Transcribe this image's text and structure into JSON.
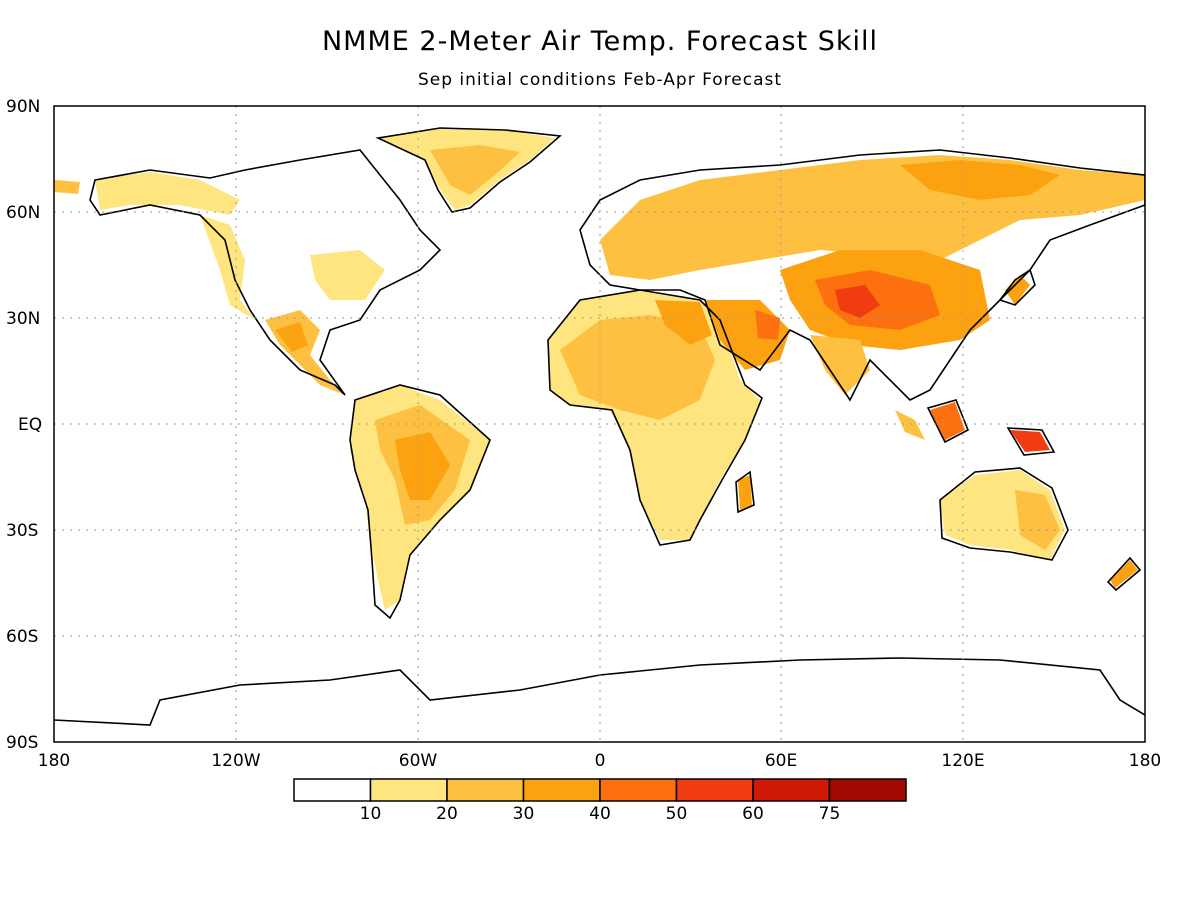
{
  "title": "NMME 2-Meter Air Temp. Forecast Skill",
  "subtitle": "Sep initial conditions  Feb-Apr Forecast",
  "lat_labels": [
    "90N",
    "60N",
    "30N",
    "EQ",
    "30S",
    "60S",
    "90S"
  ],
  "lon_labels": [
    "180",
    "120W",
    "60W",
    "0",
    "60E",
    "120E",
    "180"
  ],
  "colorbar": {
    "colors": [
      "#ffffff",
      "#fee57f",
      "#fdc040",
      "#fca210",
      "#fc7010",
      "#f03c10",
      "#d01806",
      "#a00a00"
    ],
    "labels": [
      "10",
      "20",
      "30",
      "40",
      "50",
      "60",
      "75"
    ]
  },
  "colors": {
    "coast": "#000000",
    "grid": "#9a9a9a"
  }
}
